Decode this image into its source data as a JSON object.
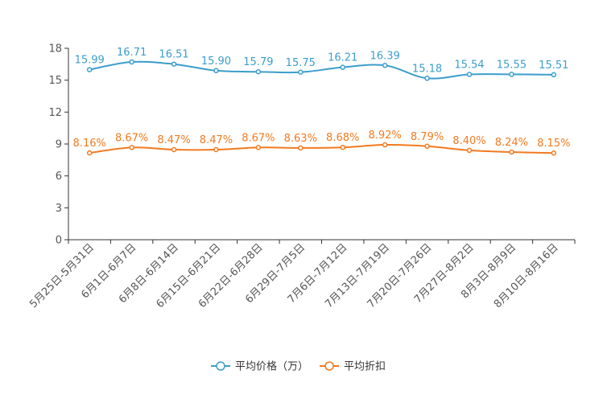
{
  "chart_data": {
    "type": "line",
    "categories": [
      "5月25日-5月31日",
      "6月1日-6月7日",
      "6月8日-6月14日",
      "6月15日-6月21日",
      "6月22日-6月28日",
      "6月29日-7月5日",
      "7月6日-7月12日",
      "7月13日-7月19日",
      "7月20日-7月26日",
      "7月27日-8月2日",
      "8月3日-8月9日",
      "8月10日-8月16日"
    ],
    "ylim": [
      0,
      18
    ],
    "yticks": [
      "0",
      "3",
      "6",
      "9",
      "12",
      "15",
      "18"
    ],
    "series": [
      {
        "name": "平均价格（万）",
        "color": "#3b9dcc",
        "values": [
          15.99,
          16.71,
          16.51,
          15.9,
          15.79,
          15.75,
          16.21,
          16.39,
          15.18,
          15.54,
          15.55,
          15.51
        ],
        "labels": [
          "15.99",
          "16.71",
          "16.51",
          "15.90",
          "15.79",
          "15.75",
          "16.21",
          "16.39",
          "15.18",
          "15.54",
          "15.55",
          "15.51"
        ]
      },
      {
        "name": "平均折扣",
        "color": "#f27a1f",
        "values": [
          8.16,
          8.67,
          8.47,
          8.47,
          8.67,
          8.63,
          8.68,
          8.92,
          8.79,
          8.4,
          8.24,
          8.15
        ],
        "labels": [
          "8.16%",
          "8.67%",
          "8.47%",
          "8.47%",
          "8.67%",
          "8.63%",
          "8.68%",
          "8.92%",
          "8.79%",
          "8.40%",
          "8.24%",
          "8.15%"
        ]
      }
    ],
    "legend_position": "bottom-center"
  }
}
